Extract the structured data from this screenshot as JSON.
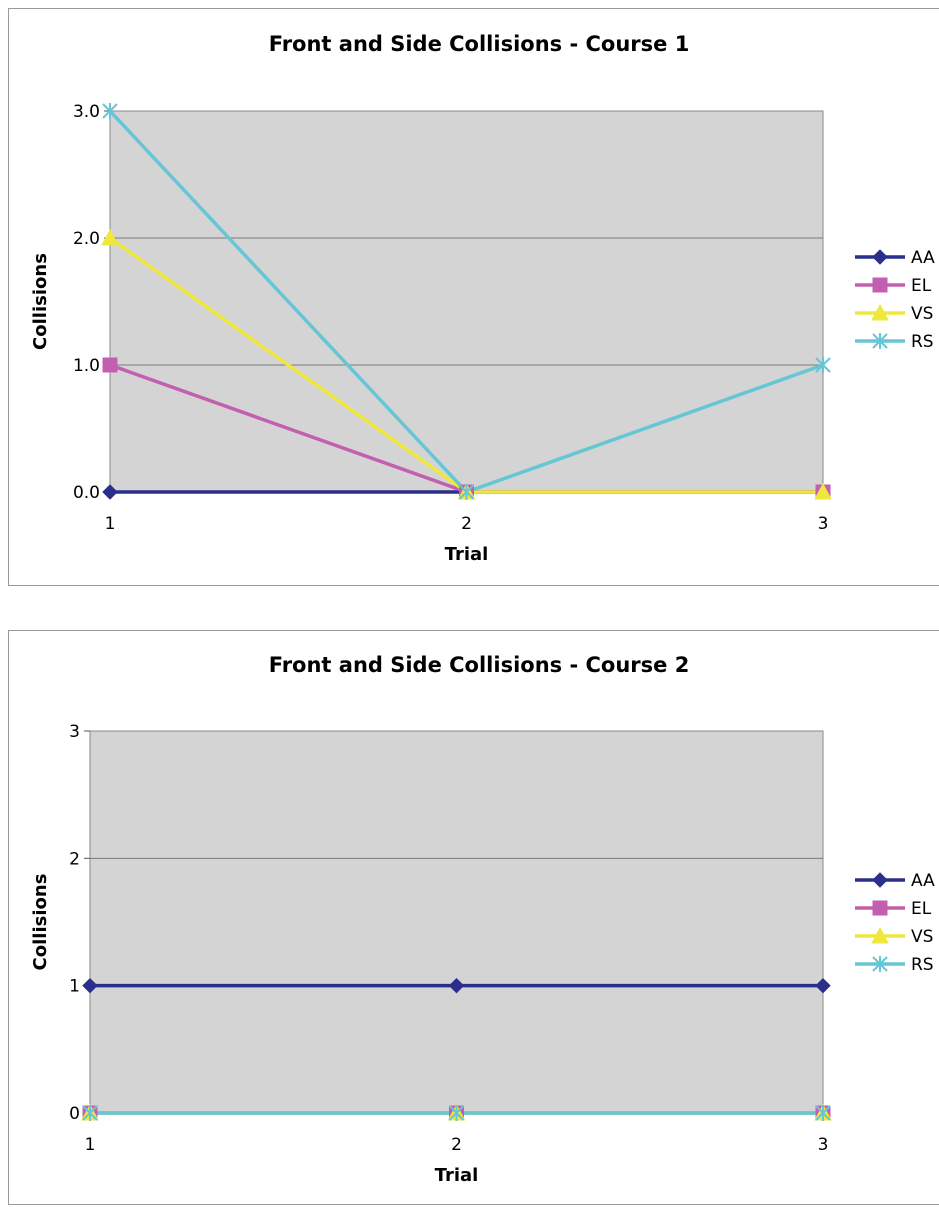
{
  "chart_data": [
    {
      "type": "line",
      "title": "Front and Side Collisions - Course 1",
      "xlabel": "Trial",
      "ylabel": "Collisions",
      "categories": [
        "1",
        "2",
        "3"
      ],
      "yticks": [
        "0.0",
        "1.0",
        "2.0",
        "3.0"
      ],
      "ylim": [
        0,
        3
      ],
      "grid": true,
      "legend_position": "right",
      "series": [
        {
          "name": "AA",
          "values": [
            0,
            0,
            0
          ],
          "color": "#2b2f8c",
          "marker": "diamond"
        },
        {
          "name": "EL",
          "values": [
            1,
            0,
            0
          ],
          "color": "#c35fb0",
          "marker": "square"
        },
        {
          "name": "VS",
          "values": [
            2,
            0,
            0
          ],
          "color": "#efe83c",
          "marker": "triangle"
        },
        {
          "name": "RS",
          "values": [
            3,
            0,
            1
          ],
          "color": "#66c6d6",
          "marker": "x"
        }
      ]
    },
    {
      "type": "line",
      "title": "Front and Side Collisions - Course 2",
      "xlabel": "Trial",
      "ylabel": "Collisions",
      "categories": [
        "1",
        "2",
        "3"
      ],
      "yticks": [
        "0",
        "1",
        "2",
        "3"
      ],
      "ylim": [
        0,
        3
      ],
      "grid": true,
      "legend_position": "right",
      "series": [
        {
          "name": "AA",
          "values": [
            1,
            1,
            1
          ],
          "color": "#2b2f8c",
          "marker": "diamond"
        },
        {
          "name": "EL",
          "values": [
            0,
            0,
            0
          ],
          "color": "#c35fb0",
          "marker": "square"
        },
        {
          "name": "VS",
          "values": [
            0,
            0,
            0
          ],
          "color": "#efe83c",
          "marker": "triangle"
        },
        {
          "name": "RS",
          "values": [
            0,
            0,
            0
          ],
          "color": "#66c6d6",
          "marker": "x"
        }
      ]
    }
  ]
}
